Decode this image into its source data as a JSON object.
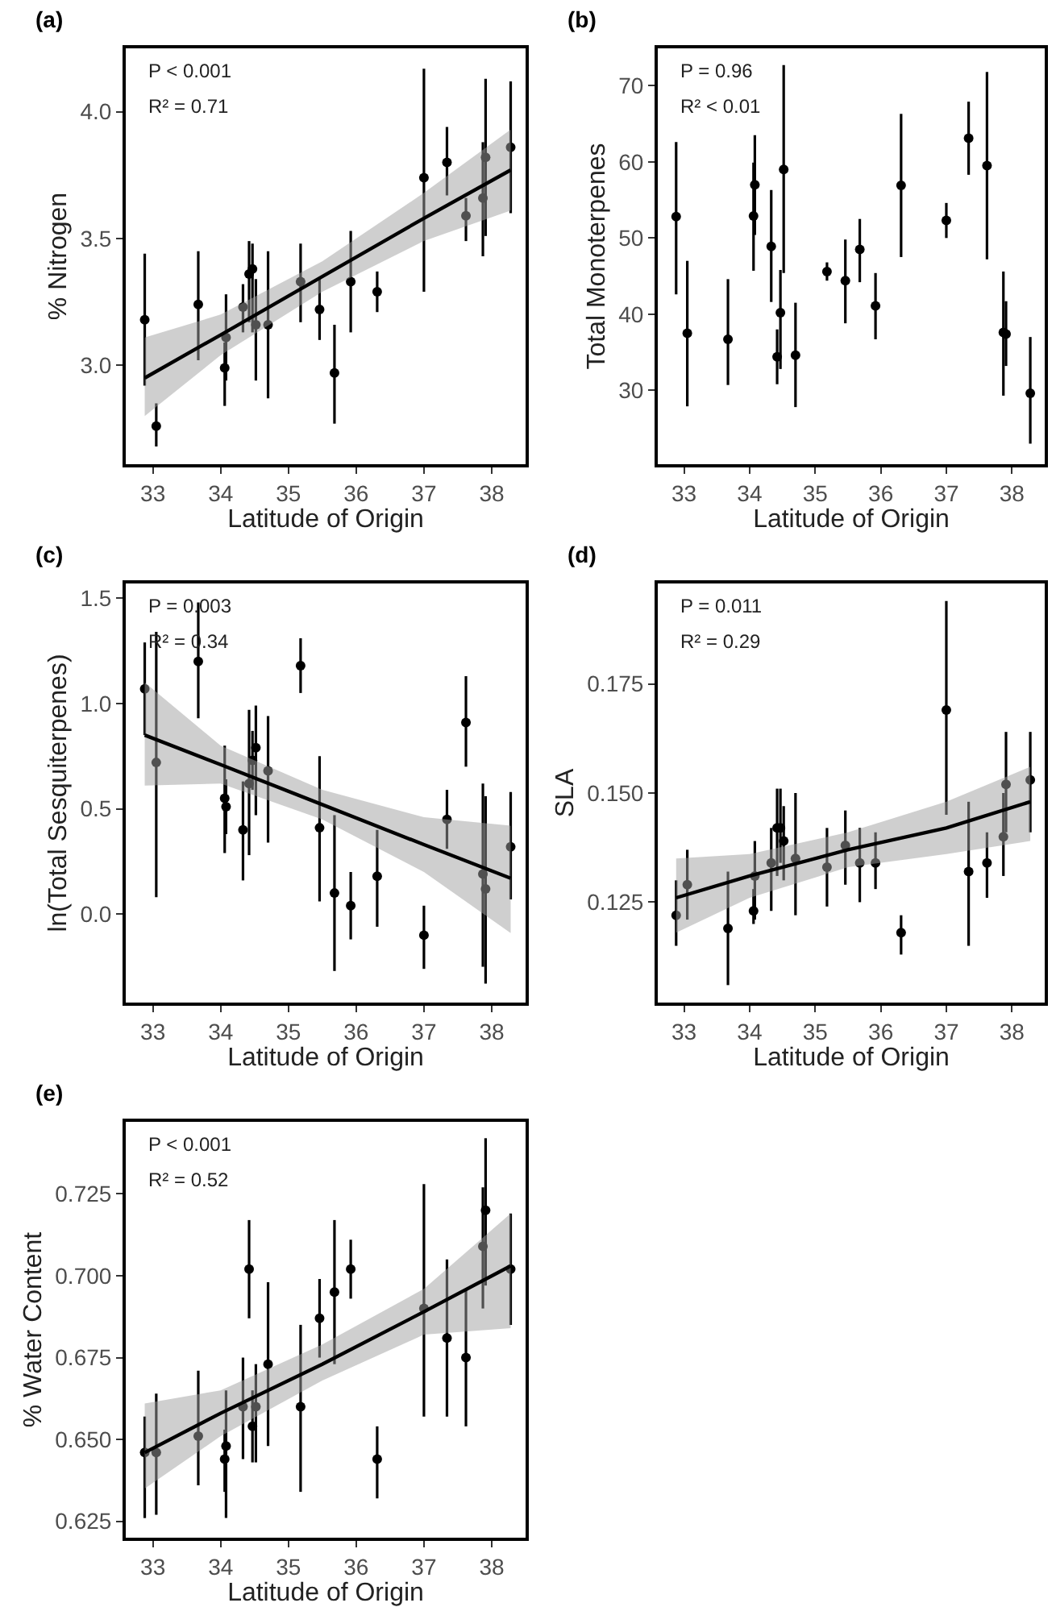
{
  "chart_data": [
    {
      "type": "scatter",
      "title": "(a)",
      "xlabel": "Latitude of Origin",
      "ylabel": "% Nitrogen",
      "annotations": [
        "P < 0.001",
        "R² = 0.71"
      ],
      "xlim": [
        32.6,
        38.5
      ],
      "xticks": [
        33,
        34,
        35,
        36,
        37,
        38
      ],
      "ylim": [
        2.61,
        4.25
      ],
      "yticks": [
        {
          "value": 3,
          "label": "3.0"
        },
        3.5,
        {
          "value": 4,
          "label": "4.0"
        }
      ],
      "grid": false,
      "x": [
        32.88,
        33.05,
        33.67,
        34.06,
        34.08,
        34.33,
        34.42,
        34.47,
        34.52,
        34.7,
        35.18,
        35.46,
        35.68,
        35.92,
        36.31,
        37.0,
        37.34,
        37.62,
        37.87,
        37.91,
        38.28
      ],
      "series": [
        {
          "color": "#000000",
          "marker": "circle",
          "values": [
            3.18,
            2.76,
            3.24,
            2.99,
            3.11,
            3.23,
            3.36,
            3.38,
            3.16,
            3.16,
            3.33,
            3.22,
            2.97,
            3.33,
            3.29,
            3.74,
            3.8,
            3.59,
            3.66,
            3.82,
            3.86
          ],
          "errors": [
            [
              2.92,
              3.44
            ],
            [
              2.68,
              2.85
            ],
            [
              3.02,
              3.45
            ],
            [
              2.84,
              3.09
            ],
            [
              2.94,
              3.28
            ],
            [
              3.13,
              3.32
            ],
            [
              3.17,
              3.49
            ],
            [
              3.13,
              3.48
            ],
            [
              2.94,
              3.34
            ],
            [
              2.87,
              3.45
            ],
            [
              3.17,
              3.48
            ],
            [
              3.1,
              3.34
            ],
            [
              2.77,
              3.16
            ],
            [
              3.13,
              3.53
            ],
            [
              3.21,
              3.37
            ],
            [
              3.29,
              4.17
            ],
            [
              3.67,
              3.94
            ],
            [
              3.49,
              3.66
            ],
            [
              3.43,
              3.88
            ],
            [
              3.51,
              4.13
            ],
            [
              3.6,
              4.12
            ]
          ]
        },
        {
          "type": "line",
          "color": "#000000",
          "x": [
            32.88,
            34,
            35.5,
            37,
            38.28
          ],
          "values": [
            2.95,
            3.12,
            3.35,
            3.58,
            3.77
          ],
          "lower": [
            2.8,
            3.04,
            3.29,
            3.49,
            3.61
          ],
          "upper": [
            3.11,
            3.2,
            3.41,
            3.68,
            3.93
          ]
        }
      ]
    },
    {
      "type": "scatter",
      "title": "(b)",
      "xlabel": "Latitude of Origin",
      "ylabel": "Total Monoterpenes",
      "annotations": [
        "P = 0.96",
        "R² < 0.01"
      ],
      "xlim": [
        32.6,
        38.5
      ],
      "xticks": [
        33,
        34,
        35,
        36,
        37,
        38
      ],
      "ylim": [
        20.3,
        74.9
      ],
      "yticks": [
        30,
        40,
        50,
        60,
        70
      ],
      "grid": false,
      "x": [
        32.88,
        33.05,
        33.67,
        34.06,
        34.08,
        34.33,
        34.42,
        34.47,
        34.52,
        34.7,
        35.18,
        35.46,
        35.68,
        35.92,
        36.31,
        37.0,
        37.34,
        37.62,
        37.87,
        37.91,
        38.28
      ],
      "series": [
        {
          "color": "#000000",
          "marker": "circle",
          "values": [
            52.8,
            37.5,
            36.7,
            52.9,
            57.0,
            48.9,
            34.4,
            40.2,
            59.0,
            34.6,
            45.6,
            44.4,
            48.5,
            41.1,
            56.9,
            52.3,
            63.1,
            59.5,
            37.6,
            37.4,
            29.6
          ],
          "errors": [
            [
              42.6,
              62.6
            ],
            [
              27.9,
              47.0
            ],
            [
              30.7,
              44.6
            ],
            [
              45.7,
              59.9
            ],
            [
              50.4,
              63.5
            ],
            [
              41.6,
              56.3
            ],
            [
              30.8,
              38.0
            ],
            [
              32.8,
              45.8
            ],
            [
              45.4,
              72.7
            ],
            [
              27.8,
              41.5
            ],
            [
              44.4,
              46.8
            ],
            [
              38.8,
              49.8
            ],
            [
              44.2,
              52.5
            ],
            [
              36.7,
              45.4
            ],
            [
              47.5,
              66.3
            ],
            [
              50.0,
              54.6
            ],
            [
              58.3,
              67.9
            ],
            [
              47.2,
              71.8
            ],
            [
              29.3,
              45.6
            ],
            [
              33.2,
              41.7
            ],
            [
              23.0,
              37.0
            ]
          ]
        }
      ]
    },
    {
      "type": "scatter",
      "title": "(c)",
      "xlabel": "Latitude of Origin",
      "ylabel": "ln(Total Sesquiterpenes)",
      "annotations": [
        "P = 0.003",
        "R² = 0.34"
      ],
      "xlim": [
        32.6,
        38.5
      ],
      "xticks": [
        33,
        34,
        35,
        36,
        37,
        38
      ],
      "ylim": [
        -0.42,
        1.57
      ],
      "yticks": [
        {
          "value": 0,
          "label": "0.0"
        },
        0.5,
        {
          "value": 1,
          "label": "1.0"
        },
        1.5
      ],
      "grid": false,
      "x": [
        32.88,
        33.05,
        33.67,
        34.06,
        34.08,
        34.33,
        34.42,
        34.47,
        34.52,
        34.7,
        35.18,
        35.46,
        35.68,
        35.92,
        36.31,
        37.0,
        37.34,
        37.62,
        37.87,
        37.91,
        38.28
      ],
      "series": [
        {
          "color": "#000000",
          "marker": "circle",
          "values": [
            1.07,
            0.72,
            1.2,
            0.55,
            0.51,
            0.4,
            0.62,
            0.73,
            0.79,
            0.68,
            1.18,
            0.41,
            0.1,
            0.04,
            0.18,
            -0.1,
            0.45,
            0.91,
            0.19,
            0.12,
            0.32
          ],
          "errors": [
            [
              0.85,
              1.29
            ],
            [
              0.08,
              1.34
            ],
            [
              0.93,
              1.48
            ],
            [
              0.29,
              0.8
            ],
            [
              0.38,
              0.64
            ],
            [
              0.16,
              0.63
            ],
            [
              0.28,
              0.97
            ],
            [
              0.59,
              0.87
            ],
            [
              0.47,
              0.99
            ],
            [
              0.34,
              0.94
            ],
            [
              1.05,
              1.31
            ],
            [
              0.06,
              0.75
            ],
            [
              -0.27,
              0.47
            ],
            [
              -0.12,
              0.2
            ],
            [
              -0.06,
              0.4
            ],
            [
              -0.26,
              0.04
            ],
            [
              0.31,
              0.59
            ],
            [
              0.7,
              1.13
            ],
            [
              -0.25,
              0.62
            ],
            [
              -0.33,
              0.56
            ],
            [
              0.07,
              0.58
            ]
          ]
        },
        {
          "type": "line",
          "color": "#000000",
          "x": [
            32.88,
            34,
            35.5,
            37,
            38.28
          ],
          "values": [
            0.85,
            0.71,
            0.52,
            0.33,
            0.17
          ],
          "lower": [
            0.61,
            0.62,
            0.45,
            0.2,
            -0.09
          ],
          "upper": [
            1.1,
            0.8,
            0.59,
            0.46,
            0.42
          ]
        }
      ]
    },
    {
      "type": "scatter",
      "title": "(d)",
      "xlabel": "Latitude of Origin",
      "ylabel": "SLA",
      "annotations": [
        "P = 0.011",
        "R² = 0.29"
      ],
      "xlim": [
        32.6,
        38.5
      ],
      "xticks": [
        33,
        34,
        35,
        36,
        37,
        38
      ],
      "ylim": [
        0.102,
        0.198
      ],
      "yticks": [
        0.125,
        {
          "value": 0.15,
          "label": "0.150"
        },
        0.175
      ],
      "grid": false,
      "x": [
        32.88,
        33.05,
        33.67,
        34.06,
        34.08,
        34.33,
        34.42,
        34.47,
        34.52,
        34.7,
        35.18,
        35.46,
        35.68,
        35.92,
        36.31,
        37.0,
        37.34,
        37.62,
        37.87,
        37.91,
        38.28
      ],
      "series": [
        {
          "color": "#000000",
          "marker": "circle",
          "values": [
            0.122,
            0.129,
            0.119,
            0.123,
            0.131,
            0.134,
            0.142,
            0.142,
            0.139,
            0.135,
            0.133,
            0.138,
            0.134,
            0.134,
            0.118,
            0.169,
            0.132,
            0.134,
            0.14,
            0.152,
            0.153
          ],
          "errors": [
            [
              0.115,
              0.13
            ],
            [
              0.121,
              0.137
            ],
            [
              0.106,
              0.132
            ],
            [
              0.12,
              0.128
            ],
            [
              0.121,
              0.139
            ],
            [
              0.123,
              0.142
            ],
            [
              0.131,
              0.151
            ],
            [
              0.134,
              0.151
            ],
            [
              0.13,
              0.147
            ],
            [
              0.122,
              0.15
            ],
            [
              0.124,
              0.142
            ],
            [
              0.129,
              0.146
            ],
            [
              0.125,
              0.142
            ],
            [
              0.128,
              0.141
            ],
            [
              0.113,
              0.122
            ],
            [
              0.145,
              0.194
            ],
            [
              0.115,
              0.148
            ],
            [
              0.126,
              0.141
            ],
            [
              0.131,
              0.15
            ],
            [
              0.141,
              0.164
            ],
            [
              0.141,
              0.164
            ]
          ]
        },
        {
          "type": "line",
          "color": "#000000",
          "x": [
            32.88,
            34,
            35.5,
            37,
            38.28
          ],
          "values": [
            0.126,
            0.131,
            0.137,
            0.142,
            0.148
          ],
          "lower": [
            0.118,
            0.126,
            0.133,
            0.136,
            0.139
          ],
          "upper": [
            0.135,
            0.136,
            0.141,
            0.148,
            0.156
          ]
        }
      ]
    },
    {
      "type": "scatter",
      "title": "(e)",
      "xlabel": "Latitude of Origin",
      "ylabel": "% Water Content",
      "annotations": [
        "P < 0.001",
        "R² = 0.52"
      ],
      "xlim": [
        32.6,
        38.5
      ],
      "xticks": [
        33,
        34,
        35,
        36,
        37,
        38
      ],
      "ylim": [
        0.62,
        0.747
      ],
      "yticks": [
        0.625,
        {
          "value": 0.65,
          "label": "0.650"
        },
        0.675,
        {
          "value": 0.7,
          "label": "0.700"
        },
        0.725
      ],
      "grid": false,
      "x": [
        32.88,
        33.05,
        33.67,
        34.06,
        34.08,
        34.33,
        34.42,
        34.47,
        34.52,
        34.7,
        35.18,
        35.46,
        35.68,
        35.92,
        36.31,
        37.0,
        37.34,
        37.62,
        37.87,
        37.91,
        38.28
      ],
      "series": [
        {
          "color": "#000000",
          "marker": "circle",
          "values": [
            0.646,
            0.646,
            0.651,
            0.644,
            0.648,
            0.66,
            0.702,
            0.654,
            0.66,
            0.673,
            0.66,
            0.687,
            0.695,
            0.702,
            0.644,
            0.69,
            0.681,
            0.675,
            0.709,
            0.72,
            0.702
          ],
          "errors": [
            [
              0.626,
              0.657
            ],
            [
              0.627,
              0.664
            ],
            [
              0.636,
              0.671
            ],
            [
              0.634,
              0.653
            ],
            [
              0.626,
              0.665
            ],
            [
              0.644,
              0.675
            ],
            [
              0.687,
              0.717
            ],
            [
              0.643,
              0.665
            ],
            [
              0.643,
              0.673
            ],
            [
              0.648,
              0.698
            ],
            [
              0.634,
              0.685
            ],
            [
              0.675,
              0.699
            ],
            [
              0.673,
              0.717
            ],
            [
              0.693,
              0.711
            ],
            [
              0.632,
              0.654
            ],
            [
              0.657,
              0.728
            ],
            [
              0.657,
              0.705
            ],
            [
              0.654,
              0.696
            ],
            [
              0.69,
              0.727
            ],
            [
              0.697,
              0.742
            ],
            [
              0.685,
              0.719
            ]
          ]
        },
        {
          "type": "line",
          "color": "#000000",
          "x": [
            32.88,
            34,
            35.5,
            37,
            38.28
          ],
          "values": [
            0.646,
            0.658,
            0.673,
            0.689,
            0.703
          ],
          "lower": [
            0.635,
            0.651,
            0.668,
            0.682,
            0.684
          ],
          "upper": [
            0.661,
            0.665,
            0.679,
            0.696,
            0.719
          ]
        }
      ]
    }
  ]
}
